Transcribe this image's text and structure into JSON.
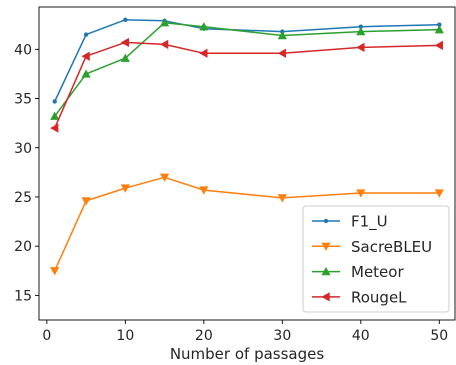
{
  "chart_data": {
    "type": "line",
    "title": "",
    "xlabel": "Number of passages",
    "ylabel": "",
    "x": [
      1,
      5,
      10,
      15,
      20,
      30,
      40,
      50
    ],
    "xlim": [
      -1,
      52
    ],
    "ylim": [
      12.5,
      44.3
    ],
    "xticks": [
      0,
      10,
      20,
      30,
      40,
      50
    ],
    "yticks": [
      15,
      20,
      25,
      30,
      35,
      40
    ],
    "grid": false,
    "legend_position": "lower-right",
    "series": [
      {
        "name": "F1_U",
        "color": "#1f77b4",
        "marker": "circle",
        "values": [
          34.7,
          41.5,
          43.0,
          42.9,
          42.1,
          41.8,
          42.3,
          42.5
        ]
      },
      {
        "name": "SacreBLEU",
        "color": "#ff7f0e",
        "marker": "triangle-down",
        "values": [
          17.5,
          24.6,
          25.9,
          27.0,
          25.7,
          24.9,
          25.4,
          25.4
        ]
      },
      {
        "name": "Meteor",
        "color": "#2ca02c",
        "marker": "triangle-up",
        "values": [
          33.2,
          37.5,
          39.1,
          42.7,
          42.3,
          41.4,
          41.8,
          42.0
        ]
      },
      {
        "name": "RougeL",
        "color": "#d62728",
        "marker": "triangle-left",
        "values": [
          32.0,
          39.3,
          40.7,
          40.5,
          39.6,
          39.6,
          40.2,
          40.4
        ]
      }
    ]
  }
}
